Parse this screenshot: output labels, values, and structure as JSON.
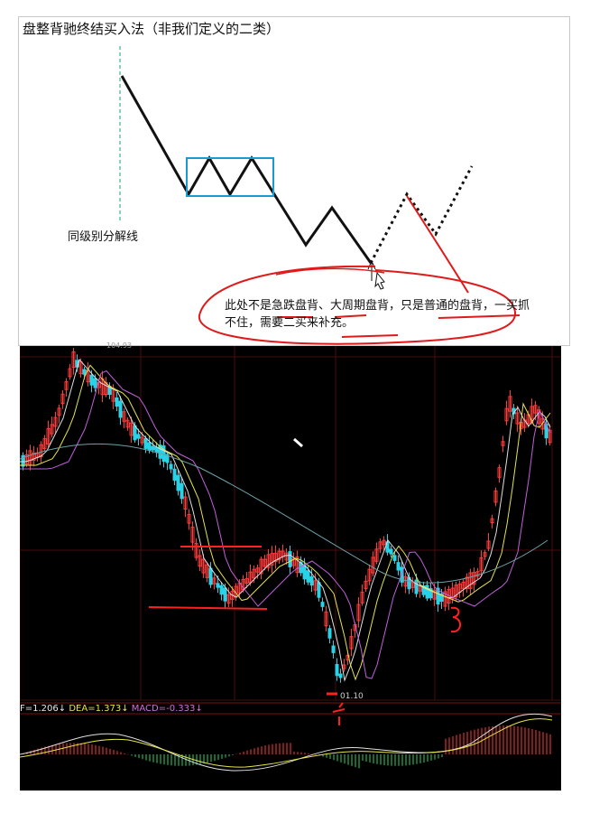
{
  "diagram": {
    "title": "盘整背驰终结买入法（非我们定义的二类）",
    "divider_label": "同级别分解线",
    "note": "此处不是急跌盘背、大周期盘背，只是普通的盘背，一买抓不住，需要二买来补充。",
    "colors": {
      "line": "#111111",
      "box": "#1a9bd0",
      "guide": "#17a36a",
      "ink": "#e01a1a"
    }
  },
  "chart": {
    "price_high_label": "104.93",
    "price_low_label": "01.10",
    "macd": {
      "dif_label": "F=1.206↓",
      "dea_label": "DEA=1.373↓",
      "macd_label": "MACD=-0.333↓"
    },
    "colors": {
      "background": "#000000",
      "up": "#ff3b3b",
      "down": "#27d3e6",
      "ma_white": "#e0e0e0",
      "ma_yellow": "#e6e34a",
      "ma_purple": "#c060d8",
      "ma_slow": "#6fa0a8",
      "annotation": "#ff2020"
    }
  }
}
